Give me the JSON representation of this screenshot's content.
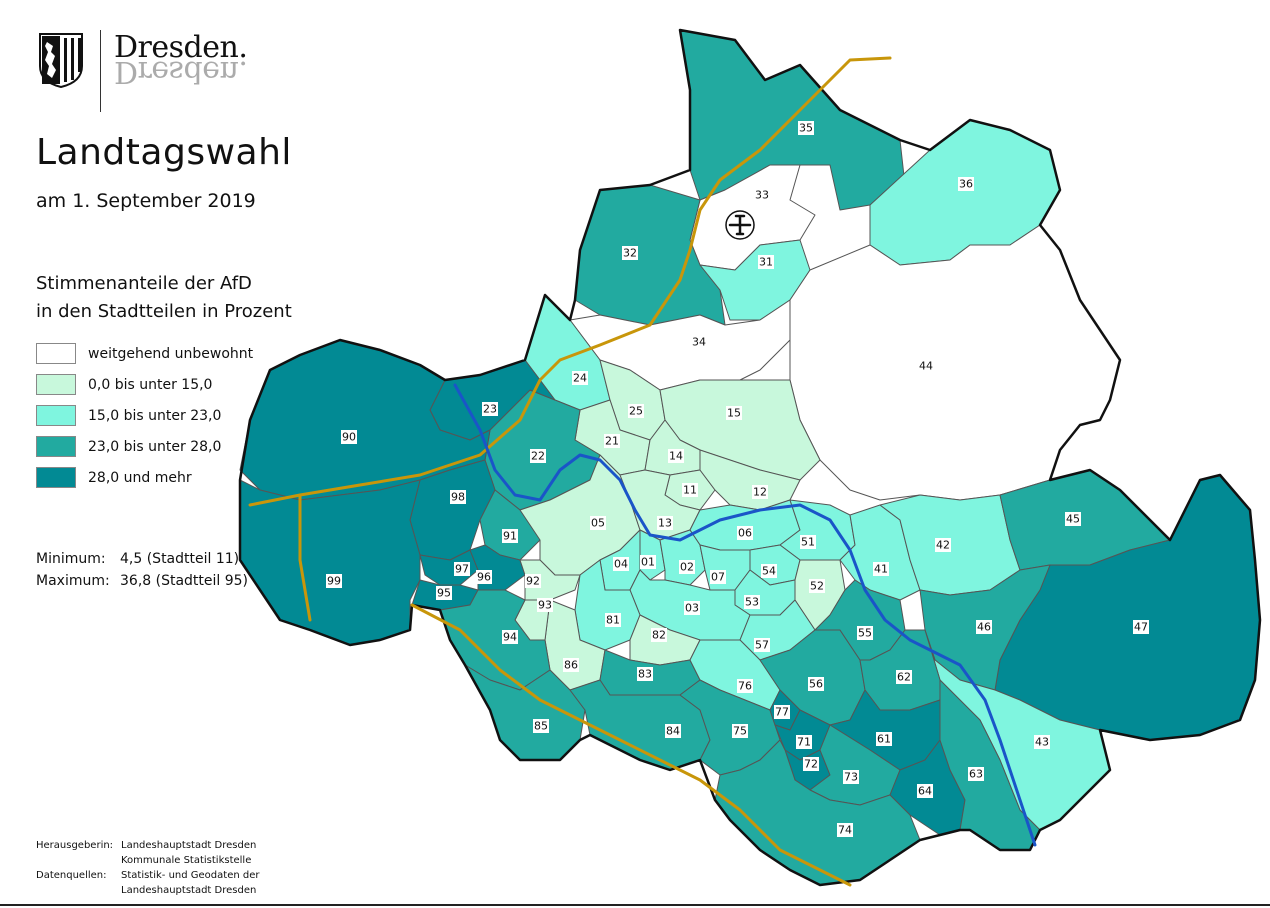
{
  "header": {
    "logo_text": "Dresden.",
    "title": "Landtagswahl",
    "subtitle": "am 1. September 2019"
  },
  "legend": {
    "title_line1": "Stimmenanteile der AfD",
    "title_line2": "in den Stadtteilen in Prozent",
    "items": [
      {
        "label": "weitgehend unbewohnt",
        "color": "#ffffff"
      },
      {
        "label": "0,0 bis unter 15,0",
        "color": "#c8f8dc"
      },
      {
        "label": "15,0 bis unter 23,0",
        "color": "#7ff5df"
      },
      {
        "label": "23,0 bis unter  28,0",
        "color": "#22aaa0"
      },
      {
        "label": "28,0 und mehr",
        "color": "#028a94"
      }
    ]
  },
  "stats": {
    "min_label": "Minimum:",
    "min_value": "4,5 (Stadtteil 11)",
    "max_label": "Maximum:",
    "max_value": "36,8 (Stadtteil 95)"
  },
  "footer": {
    "publisher_label": "Herausgeberin:",
    "publisher_line1": "Landeshauptstadt Dresden",
    "publisher_line2": "Kommunale Statistikstelle",
    "sources_label": "Datenquellen:",
    "sources_line1": "Statistik- und Geodaten der",
    "sources_line2": "Landeshauptstadt Dresden"
  },
  "map": {
    "colors": {
      "river": "#1a55c8",
      "highway": "#c8960a",
      "border": "#111111",
      "inner_border": "#555555"
    },
    "airport_icon": "airplane-icon",
    "districts": [
      {
        "id": "01",
        "class": 2
      },
      {
        "id": "02",
        "class": 2
      },
      {
        "id": "03",
        "class": 2
      },
      {
        "id": "04",
        "class": 2
      },
      {
        "id": "05",
        "class": 1
      },
      {
        "id": "06",
        "class": 2
      },
      {
        "id": "07",
        "class": 2
      },
      {
        "id": "11",
        "class": 1
      },
      {
        "id": "12",
        "class": 1
      },
      {
        "id": "13",
        "class": 1
      },
      {
        "id": "14",
        "class": 1
      },
      {
        "id": "15",
        "class": 1
      },
      {
        "id": "21",
        "class": 1
      },
      {
        "id": "22",
        "class": 3
      },
      {
        "id": "23",
        "class": 4
      },
      {
        "id": "24",
        "class": 2
      },
      {
        "id": "25",
        "class": 1
      },
      {
        "id": "31",
        "class": 2
      },
      {
        "id": "32",
        "class": 3
      },
      {
        "id": "33",
        "class": 0
      },
      {
        "id": "34",
        "class": 0
      },
      {
        "id": "35",
        "class": 3
      },
      {
        "id": "36",
        "class": 2
      },
      {
        "id": "41",
        "class": 2
      },
      {
        "id": "42",
        "class": 2
      },
      {
        "id": "43",
        "class": 2
      },
      {
        "id": "44",
        "class": 0
      },
      {
        "id": "45",
        "class": 3
      },
      {
        "id": "46",
        "class": 3
      },
      {
        "id": "47",
        "class": 4
      },
      {
        "id": "51",
        "class": 2
      },
      {
        "id": "52",
        "class": 1
      },
      {
        "id": "53",
        "class": 2
      },
      {
        "id": "54",
        "class": 2
      },
      {
        "id": "55",
        "class": 3
      },
      {
        "id": "56",
        "class": 3
      },
      {
        "id": "57",
        "class": 2
      },
      {
        "id": "61",
        "class": 4
      },
      {
        "id": "62",
        "class": 3
      },
      {
        "id": "63",
        "class": 3
      },
      {
        "id": "64",
        "class": 4
      },
      {
        "id": "71",
        "class": 4
      },
      {
        "id": "72",
        "class": 4
      },
      {
        "id": "73",
        "class": 3
      },
      {
        "id": "74",
        "class": 3
      },
      {
        "id": "75",
        "class": 3
      },
      {
        "id": "76",
        "class": 2
      },
      {
        "id": "77",
        "class": 4
      },
      {
        "id": "81",
        "class": 2
      },
      {
        "id": "82",
        "class": 1
      },
      {
        "id": "83",
        "class": 3
      },
      {
        "id": "84",
        "class": 3
      },
      {
        "id": "85",
        "class": 3
      },
      {
        "id": "86",
        "class": 1
      },
      {
        "id": "90",
        "class": 4
      },
      {
        "id": "91",
        "class": 3
      },
      {
        "id": "92",
        "class": 1
      },
      {
        "id": "93",
        "class": 1
      },
      {
        "id": "94",
        "class": 3
      },
      {
        "id": "95",
        "class": 4
      },
      {
        "id": "96",
        "class": 4
      },
      {
        "id": "97",
        "class": 4
      },
      {
        "id": "98",
        "class": 4
      },
      {
        "id": "99",
        "class": 4
      }
    ]
  }
}
